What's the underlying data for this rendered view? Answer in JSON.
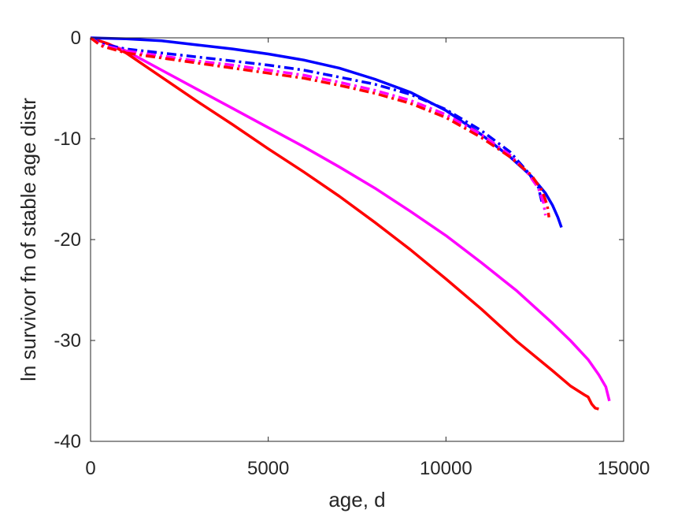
{
  "chart_data": {
    "type": "line",
    "title": "",
    "xlabel": "age, d",
    "ylabel": "ln survivor fn of stable age distr",
    "xlim": [
      0,
      15000
    ],
    "ylim": [
      -40,
      0
    ],
    "xticks": [
      0,
      5000,
      10000,
      15000
    ],
    "yticks": [
      -40,
      -30,
      -20,
      -10,
      0
    ],
    "xtick_labels": [
      "0",
      "5000",
      "10000",
      "15000"
    ],
    "ytick_labels": [
      "-40",
      "-30",
      "-20",
      "-10",
      "0"
    ],
    "grid": false,
    "legend": "none",
    "series": [
      {
        "color": "#ff00ff",
        "style": "solid",
        "x": [
          0,
          500,
          1000,
          2000,
          3000,
          4000,
          5000,
          6000,
          7000,
          8000,
          9000,
          10000,
          11000,
          12000,
          13000,
          13500,
          14000,
          14300,
          14500,
          14600
        ],
        "y": [
          0,
          -0.6,
          -1.3,
          -3.2,
          -5.1,
          -7.0,
          -8.9,
          -10.8,
          -12.8,
          -14.9,
          -17.2,
          -19.6,
          -22.3,
          -25.1,
          -28.3,
          -30.0,
          -31.9,
          -33.4,
          -34.6,
          -36.0
        ]
      },
      {
        "color": "#ff0000",
        "style": "solid",
        "x": [
          0,
          500,
          1000,
          2000,
          3000,
          4000,
          5000,
          6000,
          7000,
          8000,
          9000,
          10000,
          11000,
          12000,
          13000,
          13500,
          13900,
          14000,
          14100,
          14200,
          14300
        ],
        "y": [
          0,
          -0.6,
          -1.5,
          -3.9,
          -6.3,
          -8.6,
          -11.0,
          -13.3,
          -15.7,
          -18.3,
          -21.0,
          -23.9,
          -26.9,
          -30.1,
          -33.0,
          -34.5,
          -35.4,
          -35.6,
          -36.3,
          -36.7,
          -36.8
        ]
      },
      {
        "color": "#0000ff",
        "style": "solid",
        "x": [
          0,
          1000,
          2000,
          3000,
          4000,
          5000,
          6000,
          7000,
          8000,
          9000,
          10000,
          11000,
          11800,
          12400,
          12800,
          13000,
          13150,
          13250
        ],
        "y": [
          0,
          -0.1,
          -0.3,
          -0.7,
          -1.1,
          -1.6,
          -2.2,
          -3.0,
          -4.1,
          -5.4,
          -7.2,
          -9.6,
          -11.8,
          -13.7,
          -15.4,
          -16.6,
          -17.8,
          -18.8
        ]
      },
      {
        "color": "#0000ff",
        "style": "dashdot",
        "x": [
          0,
          300,
          1000,
          2000,
          3000,
          4000,
          5000,
          6000,
          7000,
          8000,
          9000,
          10000,
          11000,
          11800,
          12300,
          12600,
          12700
        ],
        "y": [
          0,
          -0.6,
          -1.1,
          -1.5,
          -1.9,
          -2.3,
          -2.7,
          -3.2,
          -3.9,
          -4.6,
          -5.6,
          -7.1,
          -9.2,
          -11.3,
          -13.3,
          -14.8,
          -16.3
        ]
      },
      {
        "color": "#ff00ff",
        "style": "dashdot",
        "x": [
          0,
          300,
          1000,
          2000,
          3000,
          4000,
          5000,
          6000,
          7000,
          8000,
          9000,
          10000,
          11000,
          11800,
          12300,
          12600,
          12750,
          12800
        ],
        "y": [
          0,
          -0.7,
          -1.3,
          -1.8,
          -2.3,
          -2.7,
          -3.2,
          -3.7,
          -4.4,
          -5.2,
          -6.2,
          -7.6,
          -9.6,
          -11.6,
          -13.4,
          -14.9,
          -16.4,
          -17.6
        ]
      },
      {
        "color": "#ff0000",
        "style": "dashdot",
        "x": [
          0,
          300,
          1000,
          2000,
          3000,
          4000,
          5000,
          6000,
          7000,
          8000,
          9000,
          10000,
          11000,
          11800,
          12400,
          12700,
          12850,
          12900
        ],
        "y": [
          0,
          -0.8,
          -1.5,
          -2.0,
          -2.5,
          -3.0,
          -3.5,
          -4.0,
          -4.7,
          -5.5,
          -6.5,
          -7.9,
          -9.9,
          -11.8,
          -13.6,
          -15.1,
          -16.6,
          -17.8
        ]
      }
    ]
  }
}
